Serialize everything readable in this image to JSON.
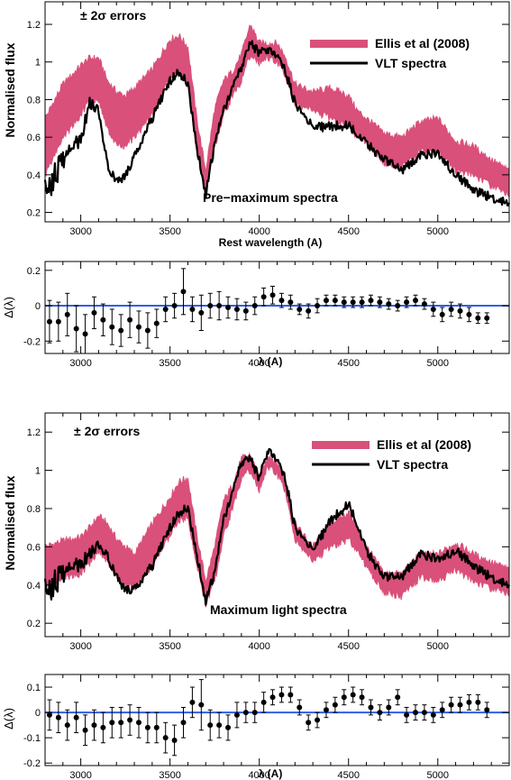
{
  "colors": {
    "band": "#d9507a",
    "line": "#000000",
    "zero_line": "#2f5fe8",
    "marker": "#000000"
  },
  "chart_data": [
    {
      "type": "area",
      "panel": "top-spectrum",
      "title": "Pre−maximum spectra",
      "errors_label": "± 2σ errors",
      "xlabel": "Rest wavelength (A)",
      "ylabel": "Normalised flux",
      "xlim": [
        2800,
        5400
      ],
      "ylim": [
        0.15,
        1.32
      ],
      "xticks": [
        3000,
        3500,
        4000,
        4500,
        5000
      ],
      "yticks": [
        0.2,
        0.4,
        0.6,
        0.8,
        1,
        1.2
      ],
      "legend_position": "top-right",
      "series": [
        {
          "name": "Ellis et al (2008)",
          "kind": "band",
          "x": [
            2800,
            2900,
            3000,
            3050,
            3100,
            3150,
            3200,
            3250,
            3300,
            3400,
            3500,
            3550,
            3600,
            3650,
            3700,
            3750,
            3800,
            3850,
            3900,
            3950,
            4000,
            4050,
            4100,
            4150,
            4200,
            4300,
            4400,
            4500,
            4550,
            4600,
            4700,
            4800,
            4900,
            5000,
            5100,
            5200,
            5300,
            5400
          ],
          "upper": [
            0.7,
            0.88,
            0.98,
            1.02,
            1.02,
            0.9,
            0.84,
            0.82,
            0.86,
            0.96,
            1.12,
            1.14,
            1.08,
            0.7,
            0.42,
            0.75,
            0.9,
            0.95,
            1.04,
            1.2,
            1.1,
            1.1,
            1.1,
            1.02,
            0.88,
            0.84,
            0.86,
            0.82,
            0.74,
            0.7,
            0.62,
            0.6,
            0.68,
            0.7,
            0.58,
            0.55,
            0.48,
            0.42
          ],
          "lower": [
            0.4,
            0.6,
            0.72,
            0.8,
            0.8,
            0.64,
            0.56,
            0.55,
            0.6,
            0.72,
            0.92,
            0.95,
            0.9,
            0.52,
            0.3,
            0.55,
            0.72,
            0.82,
            0.9,
            1.04,
            1.0,
            1.02,
            1.0,
            0.92,
            0.78,
            0.74,
            0.7,
            0.66,
            0.6,
            0.58,
            0.46,
            0.44,
            0.52,
            0.52,
            0.42,
            0.4,
            0.34,
            0.3
          ]
        },
        {
          "name": "VLT spectra",
          "kind": "line",
          "x": [
            2800,
            2900,
            3000,
            3050,
            3100,
            3150,
            3200,
            3250,
            3300,
            3400,
            3500,
            3550,
            3600,
            3650,
            3700,
            3750,
            3800,
            3850,
            3900,
            3950,
            4000,
            4050,
            4100,
            4150,
            4200,
            4300,
            4400,
            4500,
            4550,
            4600,
            4700,
            4800,
            4900,
            5000,
            5100,
            5200,
            5300,
            5400
          ],
          "y": [
            0.3,
            0.48,
            0.6,
            0.78,
            0.75,
            0.45,
            0.36,
            0.4,
            0.5,
            0.7,
            0.9,
            0.95,
            0.88,
            0.55,
            0.3,
            0.56,
            0.74,
            0.86,
            0.97,
            1.1,
            1.05,
            1.06,
            1.04,
            0.94,
            0.78,
            0.65,
            0.66,
            0.66,
            0.62,
            0.57,
            0.48,
            0.42,
            0.5,
            0.52,
            0.4,
            0.32,
            0.28,
            0.25
          ]
        }
      ]
    },
    {
      "type": "scatter",
      "panel": "top-residual",
      "xlabel": "λ (A)",
      "ylabel": "Δ(λ)",
      "xlim": [
        2800,
        5400
      ],
      "ylim": [
        -0.27,
        0.25
      ],
      "xticks": [
        3000,
        3500,
        4000,
        4500,
        5000
      ],
      "yticks": [
        -0.2,
        0,
        0.2
      ],
      "x": [
        2825,
        2875,
        2925,
        2975,
        3025,
        3075,
        3125,
        3175,
        3225,
        3275,
        3325,
        3375,
        3425,
        3475,
        3525,
        3575,
        3625,
        3675,
        3725,
        3775,
        3825,
        3875,
        3925,
        3975,
        4025,
        4075,
        4125,
        4175,
        4225,
        4275,
        4325,
        4375,
        4425,
        4475,
        4525,
        4575,
        4625,
        4675,
        4725,
        4775,
        4825,
        4875,
        4925,
        4975,
        5025,
        5075,
        5125,
        5175,
        5225,
        5275
      ],
      "y": [
        -0.09,
        -0.09,
        -0.05,
        -0.13,
        -0.16,
        -0.04,
        -0.08,
        -0.12,
        -0.14,
        -0.08,
        -0.12,
        -0.14,
        -0.1,
        -0.02,
        0.0,
        0.08,
        -0.02,
        -0.04,
        0.0,
        0.0,
        -0.01,
        -0.02,
        -0.03,
        0.0,
        0.05,
        0.06,
        0.03,
        0.02,
        -0.02,
        -0.03,
        0.0,
        0.03,
        0.03,
        0.02,
        0.02,
        0.02,
        0.03,
        0.02,
        0.01,
        0.0,
        0.02,
        0.03,
        0.01,
        -0.02,
        -0.05,
        -0.02,
        -0.03,
        -0.05,
        -0.07,
        -0.07
      ],
      "err": [
        0.12,
        0.11,
        0.12,
        0.13,
        0.11,
        0.09,
        0.09,
        0.1,
        0.09,
        0.1,
        0.09,
        0.1,
        0.08,
        0.07,
        0.07,
        0.13,
        0.07,
        0.1,
        0.07,
        0.08,
        0.06,
        0.06,
        0.05,
        0.05,
        0.05,
        0.05,
        0.04,
        0.04,
        0.03,
        0.04,
        0.04,
        0.03,
        0.03,
        0.03,
        0.03,
        0.03,
        0.03,
        0.03,
        0.03,
        0.03,
        0.03,
        0.03,
        0.03,
        0.04,
        0.04,
        0.04,
        0.04,
        0.04,
        0.03,
        0.03
      ]
    },
    {
      "type": "area",
      "panel": "bottom-spectrum",
      "title": "Maximum light spectra",
      "errors_label": "± 2σ errors",
      "xlabel": "",
      "ylabel": "Normalised flux",
      "xlim": [
        2800,
        5400
      ],
      "ylim": [
        0.13,
        1.3
      ],
      "xticks": [
        3000,
        3500,
        4000,
        4500,
        5000
      ],
      "yticks": [
        0.2,
        0.4,
        0.6,
        0.8,
        1,
        1.2
      ],
      "legend_position": "top-right",
      "series": [
        {
          "name": "Ellis et al (2008)",
          "kind": "band",
          "x": [
            2800,
            2900,
            3000,
            3050,
            3100,
            3150,
            3200,
            3250,
            3300,
            3400,
            3500,
            3550,
            3600,
            3650,
            3700,
            3750,
            3800,
            3850,
            3900,
            3950,
            4000,
            4050,
            4100,
            4150,
            4200,
            4300,
            4400,
            4500,
            4550,
            4600,
            4700,
            4800,
            4900,
            5000,
            5100,
            5200,
            5300,
            5400
          ],
          "upper": [
            0.6,
            0.63,
            0.65,
            0.7,
            0.76,
            0.72,
            0.64,
            0.6,
            0.56,
            0.72,
            0.86,
            0.94,
            0.96,
            0.66,
            0.42,
            0.6,
            0.84,
            0.92,
            1.06,
            1.08,
            0.96,
            1.08,
            1.04,
            0.94,
            0.72,
            0.6,
            0.72,
            0.78,
            0.7,
            0.6,
            0.46,
            0.46,
            0.56,
            0.56,
            0.62,
            0.56,
            0.52,
            0.48
          ],
          "lower": [
            0.38,
            0.44,
            0.46,
            0.52,
            0.58,
            0.52,
            0.44,
            0.4,
            0.38,
            0.5,
            0.66,
            0.74,
            0.76,
            0.5,
            0.3,
            0.42,
            0.66,
            0.8,
            0.96,
            1.0,
            0.9,
            1.02,
            0.98,
            0.88,
            0.64,
            0.52,
            0.6,
            0.64,
            0.58,
            0.5,
            0.36,
            0.34,
            0.44,
            0.42,
            0.48,
            0.42,
            0.38,
            0.36
          ]
        },
        {
          "name": "VLT spectra",
          "kind": "line",
          "x": [
            2800,
            2900,
            3000,
            3050,
            3100,
            3150,
            3200,
            3250,
            3300,
            3400,
            3500,
            3550,
            3600,
            3650,
            3700,
            3750,
            3800,
            3850,
            3900,
            3950,
            4000,
            4050,
            4100,
            4150,
            4200,
            4300,
            4400,
            4500,
            4550,
            4600,
            4700,
            4800,
            4900,
            5000,
            5100,
            5200,
            5300,
            5400
          ],
          "y": [
            0.36,
            0.46,
            0.52,
            0.56,
            0.62,
            0.55,
            0.44,
            0.38,
            0.38,
            0.5,
            0.7,
            0.78,
            0.8,
            0.56,
            0.32,
            0.46,
            0.74,
            0.88,
            1.04,
            1.06,
            0.96,
            1.1,
            1.06,
            0.94,
            0.7,
            0.58,
            0.74,
            0.82,
            0.72,
            0.58,
            0.44,
            0.44,
            0.56,
            0.54,
            0.58,
            0.5,
            0.44,
            0.4
          ]
        }
      ]
    },
    {
      "type": "scatter",
      "panel": "bottom-residual",
      "xlabel": "λ (A)",
      "ylabel": "Δ(λ)",
      "xlim": [
        2800,
        5400
      ],
      "ylim": [
        -0.21,
        0.15
      ],
      "xticks": [
        3000,
        3500,
        4000,
        4500,
        5000
      ],
      "yticks": [
        -0.2,
        -0.1,
        0,
        0.1
      ],
      "x": [
        2825,
        2875,
        2925,
        2975,
        3025,
        3075,
        3125,
        3175,
        3225,
        3275,
        3325,
        3375,
        3425,
        3475,
        3525,
        3575,
        3625,
        3675,
        3725,
        3775,
        3825,
        3875,
        3925,
        3975,
        4025,
        4075,
        4125,
        4175,
        4225,
        4275,
        4325,
        4375,
        4425,
        4475,
        4525,
        4575,
        4625,
        4675,
        4725,
        4775,
        4825,
        4875,
        4925,
        4975,
        5025,
        5075,
        5125,
        5175,
        5225,
        5275
      ],
      "y": [
        -0.01,
        -0.02,
        -0.05,
        -0.02,
        -0.07,
        -0.05,
        -0.06,
        -0.04,
        -0.04,
        -0.03,
        -0.04,
        -0.06,
        -0.06,
        -0.1,
        -0.11,
        -0.04,
        0.04,
        0.03,
        -0.05,
        -0.05,
        -0.06,
        -0.01,
        0.0,
        0.0,
        0.04,
        0.06,
        0.07,
        0.07,
        0.02,
        -0.04,
        -0.03,
        0.01,
        0.03,
        0.06,
        0.07,
        0.06,
        0.02,
        0.0,
        0.02,
        0.06,
        -0.01,
        0.0,
        0.0,
        -0.01,
        0.01,
        0.03,
        0.03,
        0.04,
        0.04,
        0.01
      ],
      "err": [
        0.06,
        0.06,
        0.06,
        0.06,
        0.06,
        0.06,
        0.06,
        0.06,
        0.06,
        0.06,
        0.06,
        0.06,
        0.06,
        0.06,
        0.06,
        0.06,
        0.06,
        0.1,
        0.06,
        0.05,
        0.05,
        0.05,
        0.04,
        0.04,
        0.04,
        0.03,
        0.03,
        0.03,
        0.03,
        0.03,
        0.03,
        0.03,
        0.03,
        0.03,
        0.03,
        0.03,
        0.03,
        0.03,
        0.03,
        0.03,
        0.03,
        0.03,
        0.03,
        0.03,
        0.03,
        0.03,
        0.03,
        0.03,
        0.03,
        0.03
      ]
    }
  ]
}
